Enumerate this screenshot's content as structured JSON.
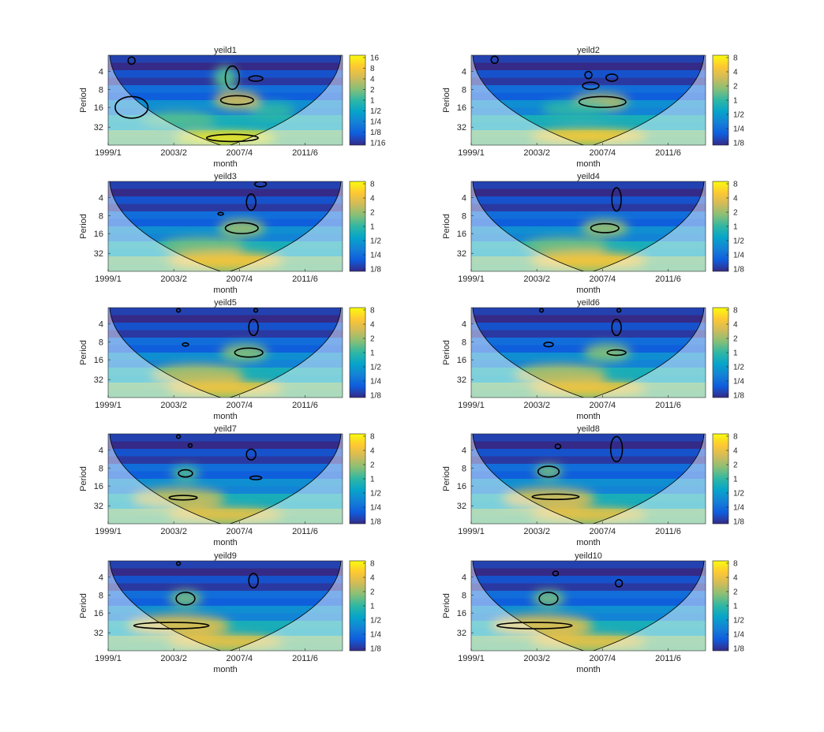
{
  "colors": {
    "parula": [
      "#352a87",
      "#0f5cdd",
      "#1481d6",
      "#06a4ca",
      "#2eb7a4",
      "#87bf77",
      "#d1bb59",
      "#fec832",
      "#f9fb0e"
    ],
    "coi_shade": "#ffffff",
    "contour": "#000000",
    "outer_contour": "#808080",
    "axis": "#262626"
  },
  "chart_data": [
    {
      "type": "heatmap",
      "title": "yeild1",
      "xlabel": "month",
      "ylabel": "Period",
      "xticks": [
        "1999/1",
        "2003/2",
        "2007/4",
        "2011/6"
      ],
      "yticks": [
        "4",
        "8",
        "16",
        "32"
      ],
      "colorbar_ticks": [
        "16",
        "8",
        "4",
        "2",
        "1",
        "1/2",
        "1/4",
        "1/8",
        "1/16"
      ],
      "blobs": [
        {
          "x": 0.55,
          "y": 0.5,
          "rx": 0.1,
          "ry": 0.1,
          "level": 0.75
        },
        {
          "x": 0.5,
          "y": 0.25,
          "rx": 0.05,
          "ry": 0.13,
          "level": 0.55
        },
        {
          "x": 0.3,
          "y": 0.72,
          "rx": 0.16,
          "ry": 0.1,
          "level": 0.55
        },
        {
          "x": 0.7,
          "y": 0.62,
          "rx": 0.1,
          "ry": 0.09,
          "level": 0.5
        },
        {
          "x": 0.5,
          "y": 0.92,
          "rx": 0.22,
          "ry": 0.07,
          "level": 0.95
        }
      ],
      "contours": [
        {
          "x": 0.55,
          "y": 0.5,
          "rx": 0.07,
          "ry": 0.05
        },
        {
          "x": 0.53,
          "y": 0.25,
          "rx": 0.03,
          "ry": 0.13
        },
        {
          "x": 0.63,
          "y": 0.26,
          "rx": 0.03,
          "ry": 0.03
        },
        {
          "x": 0.1,
          "y": 0.58,
          "rx": 0.07,
          "ry": 0.12
        },
        {
          "x": 0.53,
          "y": 0.92,
          "rx": 0.11,
          "ry": 0.04
        },
        {
          "x": 0.1,
          "y": 0.06,
          "rx": 0.015,
          "ry": 0.04
        }
      ]
    },
    {
      "type": "heatmap",
      "title": "yeild2",
      "xlabel": "month",
      "ylabel": "Period",
      "xticks": [
        "1999/1",
        "2003/2",
        "2007/4",
        "2011/6"
      ],
      "yticks": [
        "4",
        "8",
        "16",
        "32"
      ],
      "colorbar_ticks": [
        "8",
        "4",
        "2",
        "1",
        "1/2",
        "1/4",
        "1/8"
      ],
      "blobs": [
        {
          "x": 0.55,
          "y": 0.52,
          "rx": 0.12,
          "ry": 0.1,
          "level": 0.7
        },
        {
          "x": 0.45,
          "y": 0.6,
          "rx": 0.15,
          "ry": 0.09,
          "level": 0.5
        },
        {
          "x": 0.5,
          "y": 0.9,
          "rx": 0.25,
          "ry": 0.08,
          "level": 0.88
        }
      ],
      "contours": [
        {
          "x": 0.56,
          "y": 0.52,
          "rx": 0.1,
          "ry": 0.06
        },
        {
          "x": 0.51,
          "y": 0.34,
          "rx": 0.035,
          "ry": 0.04
        },
        {
          "x": 0.6,
          "y": 0.25,
          "rx": 0.025,
          "ry": 0.04
        },
        {
          "x": 0.5,
          "y": 0.22,
          "rx": 0.015,
          "ry": 0.04
        },
        {
          "x": 0.1,
          "y": 0.05,
          "rx": 0.015,
          "ry": 0.04
        }
      ]
    },
    {
      "type": "heatmap",
      "title": "yeild3",
      "xlabel": "month",
      "ylabel": "Period",
      "xticks": [
        "1999/1",
        "2003/2",
        "2007/4",
        "2011/6"
      ],
      "yticks": [
        "4",
        "8",
        "16",
        "32"
      ],
      "colorbar_ticks": [
        "8",
        "4",
        "2",
        "1",
        "1/2",
        "1/4",
        "1/8"
      ],
      "blobs": [
        {
          "x": 0.57,
          "y": 0.52,
          "rx": 0.1,
          "ry": 0.1,
          "level": 0.65
        },
        {
          "x": 0.4,
          "y": 0.72,
          "rx": 0.18,
          "ry": 0.1,
          "level": 0.6
        },
        {
          "x": 0.5,
          "y": 0.88,
          "rx": 0.25,
          "ry": 0.1,
          "level": 0.85
        }
      ],
      "contours": [
        {
          "x": 0.57,
          "y": 0.52,
          "rx": 0.07,
          "ry": 0.06
        },
        {
          "x": 0.61,
          "y": 0.23,
          "rx": 0.02,
          "ry": 0.09
        },
        {
          "x": 0.48,
          "y": 0.36,
          "rx": 0.012,
          "ry": 0.015
        },
        {
          "x": 0.65,
          "y": 0.03,
          "rx": 0.025,
          "ry": 0.03
        }
      ]
    },
    {
      "type": "heatmap",
      "title": "yeild4",
      "xlabel": "month",
      "ylabel": "Period",
      "xticks": [
        "1999/1",
        "2003/2",
        "2007/4",
        "2011/6"
      ],
      "yticks": [
        "4",
        "8",
        "16",
        "32"
      ],
      "colorbar_ticks": [
        "8",
        "4",
        "2",
        "1",
        "1/2",
        "1/4",
        "1/8"
      ],
      "blobs": [
        {
          "x": 0.57,
          "y": 0.52,
          "rx": 0.1,
          "ry": 0.1,
          "level": 0.65
        },
        {
          "x": 0.4,
          "y": 0.72,
          "rx": 0.18,
          "ry": 0.1,
          "level": 0.6
        },
        {
          "x": 0.5,
          "y": 0.88,
          "rx": 0.25,
          "ry": 0.1,
          "level": 0.85
        }
      ],
      "contours": [
        {
          "x": 0.57,
          "y": 0.52,
          "rx": 0.06,
          "ry": 0.05
        },
        {
          "x": 0.62,
          "y": 0.2,
          "rx": 0.02,
          "ry": 0.13
        }
      ]
    },
    {
      "type": "heatmap",
      "title": "yeild5",
      "xlabel": "month",
      "ylabel": "Period",
      "xticks": [
        "1999/1",
        "2003/2",
        "2007/4",
        "2011/6"
      ],
      "yticks": [
        "4",
        "8",
        "16",
        "32"
      ],
      "colorbar_ticks": [
        "8",
        "4",
        "2",
        "1",
        "1/2",
        "1/4",
        "1/8"
      ],
      "blobs": [
        {
          "x": 0.58,
          "y": 0.5,
          "rx": 0.1,
          "ry": 0.1,
          "level": 0.62
        },
        {
          "x": 0.38,
          "y": 0.75,
          "rx": 0.2,
          "ry": 0.12,
          "level": 0.7
        },
        {
          "x": 0.5,
          "y": 0.9,
          "rx": 0.25,
          "ry": 0.08,
          "level": 0.85
        }
      ],
      "contours": [
        {
          "x": 0.6,
          "y": 0.5,
          "rx": 0.06,
          "ry": 0.05
        },
        {
          "x": 0.62,
          "y": 0.22,
          "rx": 0.02,
          "ry": 0.09
        },
        {
          "x": 0.33,
          "y": 0.41,
          "rx": 0.013,
          "ry": 0.018
        },
        {
          "x": 0.3,
          "y": 0.03,
          "rx": 0.008,
          "ry": 0.02
        },
        {
          "x": 0.63,
          "y": 0.03,
          "rx": 0.008,
          "ry": 0.02
        }
      ]
    },
    {
      "type": "heatmap",
      "title": "yeild6",
      "xlabel": "month",
      "ylabel": "Period",
      "xticks": [
        "1999/1",
        "2003/2",
        "2007/4",
        "2011/6"
      ],
      "yticks": [
        "4",
        "8",
        "16",
        "32"
      ],
      "colorbar_ticks": [
        "8",
        "4",
        "2",
        "1",
        "1/2",
        "1/4",
        "1/8"
      ],
      "blobs": [
        {
          "x": 0.58,
          "y": 0.5,
          "rx": 0.1,
          "ry": 0.1,
          "level": 0.62
        },
        {
          "x": 0.38,
          "y": 0.75,
          "rx": 0.2,
          "ry": 0.12,
          "level": 0.7
        },
        {
          "x": 0.5,
          "y": 0.9,
          "rx": 0.25,
          "ry": 0.08,
          "level": 0.85
        }
      ],
      "contours": [
        {
          "x": 0.62,
          "y": 0.5,
          "rx": 0.04,
          "ry": 0.03
        },
        {
          "x": 0.62,
          "y": 0.22,
          "rx": 0.02,
          "ry": 0.09
        },
        {
          "x": 0.33,
          "y": 0.41,
          "rx": 0.02,
          "ry": 0.025
        },
        {
          "x": 0.3,
          "y": 0.03,
          "rx": 0.008,
          "ry": 0.02
        },
        {
          "x": 0.63,
          "y": 0.03,
          "rx": 0.008,
          "ry": 0.02
        }
      ]
    },
    {
      "type": "heatmap",
      "title": "yeild7",
      "xlabel": "month",
      "ylabel": "Period",
      "xticks": [
        "1999/1",
        "2003/2",
        "2007/4",
        "2011/6"
      ],
      "yticks": [
        "4",
        "8",
        "16",
        "32"
      ],
      "colorbar_ticks": [
        "8",
        "4",
        "2",
        "1",
        "1/2",
        "1/4",
        "1/8"
      ],
      "blobs": [
        {
          "x": 0.33,
          "y": 0.44,
          "rx": 0.06,
          "ry": 0.08,
          "level": 0.55
        },
        {
          "x": 0.3,
          "y": 0.72,
          "rx": 0.2,
          "ry": 0.12,
          "level": 0.72
        },
        {
          "x": 0.5,
          "y": 0.9,
          "rx": 0.25,
          "ry": 0.08,
          "level": 0.82
        }
      ],
      "contours": [
        {
          "x": 0.33,
          "y": 0.44,
          "rx": 0.03,
          "ry": 0.04
        },
        {
          "x": 0.61,
          "y": 0.23,
          "rx": 0.02,
          "ry": 0.06
        },
        {
          "x": 0.63,
          "y": 0.49,
          "rx": 0.025,
          "ry": 0.02
        },
        {
          "x": 0.32,
          "y": 0.71,
          "rx": 0.06,
          "ry": 0.025
        },
        {
          "x": 0.35,
          "y": 0.13,
          "rx": 0.008,
          "ry": 0.02
        },
        {
          "x": 0.3,
          "y": 0.03,
          "rx": 0.008,
          "ry": 0.02
        }
      ]
    },
    {
      "type": "heatmap",
      "title": "yeild8",
      "xlabel": "month",
      "ylabel": "Period",
      "xticks": [
        "1999/1",
        "2003/2",
        "2007/4",
        "2011/6"
      ],
      "yticks": [
        "4",
        "8",
        "16",
        "32"
      ],
      "colorbar_ticks": [
        "8",
        "4",
        "2",
        "1",
        "1/2",
        "1/4",
        "1/8"
      ],
      "blobs": [
        {
          "x": 0.33,
          "y": 0.42,
          "rx": 0.06,
          "ry": 0.08,
          "level": 0.6
        },
        {
          "x": 0.33,
          "y": 0.72,
          "rx": 0.2,
          "ry": 0.12,
          "level": 0.75
        },
        {
          "x": 0.5,
          "y": 0.9,
          "rx": 0.25,
          "ry": 0.08,
          "level": 0.82
        }
      ],
      "contours": [
        {
          "x": 0.33,
          "y": 0.42,
          "rx": 0.045,
          "ry": 0.06
        },
        {
          "x": 0.62,
          "y": 0.17,
          "rx": 0.025,
          "ry": 0.14
        },
        {
          "x": 0.36,
          "y": 0.7,
          "rx": 0.1,
          "ry": 0.03
        },
        {
          "x": 0.37,
          "y": 0.14,
          "rx": 0.012,
          "ry": 0.025
        }
      ]
    },
    {
      "type": "heatmap",
      "title": "yeild9",
      "xlabel": "month",
      "ylabel": "Period",
      "xticks": [
        "1999/1",
        "2003/2",
        "2007/4",
        "2011/6"
      ],
      "yticks": [
        "4",
        "8",
        "16",
        "32"
      ],
      "colorbar_ticks": [
        "8",
        "4",
        "2",
        "1",
        "1/2",
        "1/4",
        "1/8"
      ],
      "blobs": [
        {
          "x": 0.33,
          "y": 0.42,
          "rx": 0.07,
          "ry": 0.09,
          "level": 0.6
        },
        {
          "x": 0.3,
          "y": 0.72,
          "rx": 0.22,
          "ry": 0.12,
          "level": 0.78
        },
        {
          "x": 0.5,
          "y": 0.9,
          "rx": 0.25,
          "ry": 0.08,
          "level": 0.82
        }
      ],
      "contours": [
        {
          "x": 0.33,
          "y": 0.42,
          "rx": 0.04,
          "ry": 0.07
        },
        {
          "x": 0.62,
          "y": 0.22,
          "rx": 0.02,
          "ry": 0.08
        },
        {
          "x": 0.27,
          "y": 0.72,
          "rx": 0.16,
          "ry": 0.035
        },
        {
          "x": 0.3,
          "y": 0.03,
          "rx": 0.008,
          "ry": 0.02
        }
      ]
    },
    {
      "type": "heatmap",
      "title": "yeild10",
      "xlabel": "month",
      "ylabel": "Period",
      "xticks": [
        "1999/1",
        "2003/2",
        "2007/4",
        "2011/6"
      ],
      "yticks": [
        "4",
        "8",
        "16",
        "32"
      ],
      "colorbar_ticks": [
        "8",
        "4",
        "2",
        "1",
        "1/2",
        "1/4",
        "1/8"
      ],
      "blobs": [
        {
          "x": 0.33,
          "y": 0.42,
          "rx": 0.07,
          "ry": 0.09,
          "level": 0.6
        },
        {
          "x": 0.3,
          "y": 0.72,
          "rx": 0.22,
          "ry": 0.12,
          "level": 0.78
        },
        {
          "x": 0.5,
          "y": 0.9,
          "rx": 0.25,
          "ry": 0.08,
          "level": 0.82
        }
      ],
      "contours": [
        {
          "x": 0.33,
          "y": 0.42,
          "rx": 0.04,
          "ry": 0.07
        },
        {
          "x": 0.63,
          "y": 0.25,
          "rx": 0.015,
          "ry": 0.04
        },
        {
          "x": 0.27,
          "y": 0.72,
          "rx": 0.16,
          "ry": 0.035
        },
        {
          "x": 0.36,
          "y": 0.14,
          "rx": 0.012,
          "ry": 0.025
        }
      ]
    }
  ]
}
